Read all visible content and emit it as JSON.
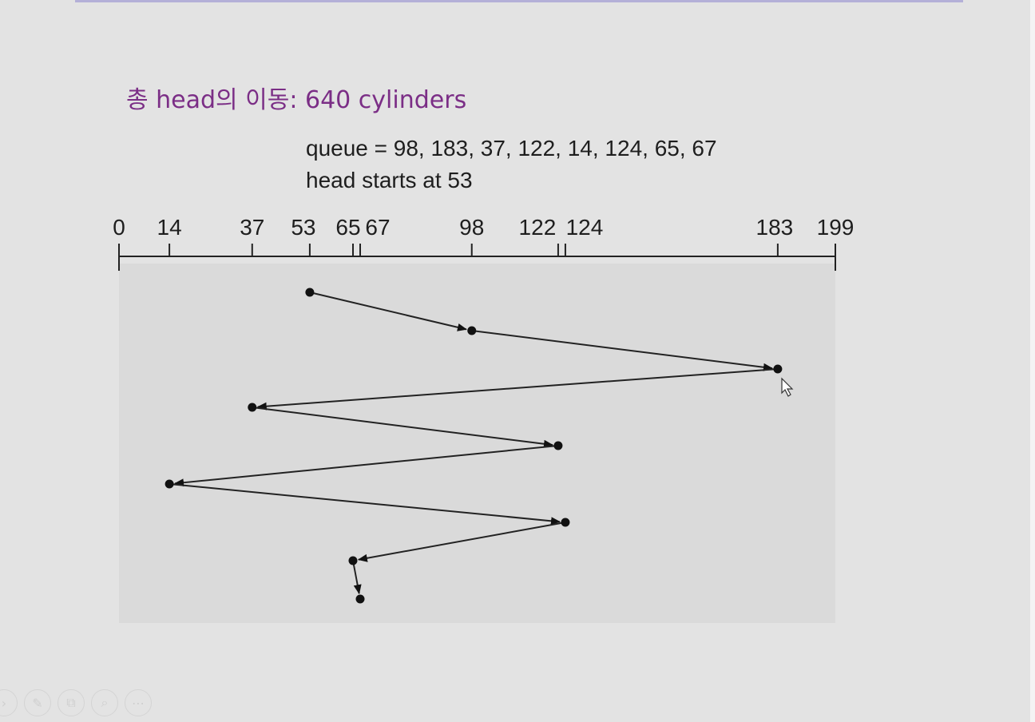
{
  "heading": "총 head의 이동: 640 cylinders",
  "queue_line": "queue = 98, 183, 37, 122, 14, 124, 65, 67",
  "head_line": "head starts at 53",
  "diagram": {
    "axis_min": 0,
    "axis_max": 199,
    "ticks": [
      0,
      14,
      37,
      53,
      65,
      67,
      98,
      122,
      124,
      183,
      199
    ],
    "tick_labels": [
      "0",
      "14",
      "37",
      "53",
      "65",
      "67",
      "98",
      "122",
      "124",
      "183",
      "199"
    ],
    "head_start": 53,
    "visit_order": [
      53,
      98,
      183,
      37,
      122,
      14,
      124,
      65,
      67
    ]
  },
  "toolbar": {
    "icons": [
      "back-icon",
      "pen-icon",
      "copy-icon",
      "zoom-icon",
      "more-icon"
    ],
    "glyphs": [
      "›",
      "✎",
      "⧉",
      "⌕",
      "⋯"
    ]
  }
}
